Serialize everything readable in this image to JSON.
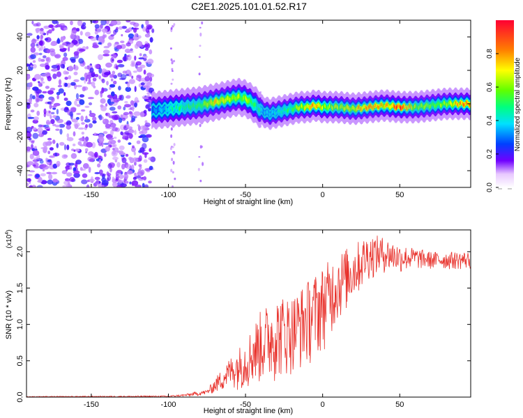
{
  "title": "C2E1.2025.101.01.52.R17",
  "chart_data": [
    {
      "type": "heatmap",
      "xlabel": "Height of straight line (km)",
      "ylabel": "Frequency (Hz)",
      "xlim": [
        -192,
        96
      ],
      "ylim": [
        -50,
        50
      ],
      "xticks": [
        -150,
        -100,
        -50,
        0,
        50
      ],
      "yticks": [
        -40,
        -20,
        0,
        20,
        40
      ],
      "colorbar": {
        "label": "Normalized spectral amplitude",
        "range": [
          0,
          1
        ],
        "ticks": [
          "0.0",
          "0.2",
          "0.4",
          "0.6",
          "0.8"
        ]
      },
      "ridge": {
        "description_x": [
          -110,
          -100,
          -90,
          -80,
          -70,
          -60,
          -55,
          -50,
          -45,
          -40,
          -35,
          -30,
          -25,
          -20,
          -15,
          -10,
          -5,
          0,
          10,
          20,
          30,
          40,
          50,
          60,
          70,
          80,
          90,
          96
        ],
        "freq_y": [
          -4,
          -3,
          -2,
          -1,
          1,
          3,
          4,
          3,
          0,
          -4,
          -6,
          -5,
          -4,
          -3,
          -2,
          -2,
          -1,
          -2,
          -2,
          -3,
          -2,
          -1,
          -2,
          -2,
          -1,
          0,
          0,
          0
        ],
        "peak_amplitude": [
          0.3,
          0.4,
          0.5,
          0.5,
          0.7,
          0.6,
          0.6,
          0.6,
          0.5,
          0.4,
          0.35,
          0.4,
          0.45,
          0.5,
          0.6,
          0.7,
          0.8,
          0.6,
          0.6,
          0.7,
          0.8,
          0.7,
          0.9,
          0.6,
          0.55,
          0.6,
          0.8,
          0.8
        ]
      }
    },
    {
      "type": "line",
      "xlabel": "Height of straight line (km)",
      "ylabel": "SNR (10 * v/v)",
      "yexp": "(x10",
      "yexp_power": "4",
      "yexp_close": ")",
      "xlim": [
        -192,
        96
      ],
      "ylim": [
        0,
        2.3
      ],
      "xticks": [
        -150,
        -100,
        -50,
        0,
        50
      ],
      "yticks": [
        "0.0",
        "0.5",
        "1.0",
        "1.5",
        "2.0"
      ],
      "color": "#e8302a",
      "series": [
        {
          "name": "SNR",
          "x": [
            -192,
            -100,
            -90,
            -80,
            -75,
            -70,
            -60,
            -50,
            -40,
            -30,
            -20,
            -10,
            0,
            10,
            20,
            30,
            40,
            50,
            60,
            70,
            80,
            96
          ],
          "low": [
            0.0,
            0.0,
            0.01,
            0.02,
            0.03,
            0.05,
            0.1,
            0.1,
            0.15,
            0.2,
            0.3,
            0.4,
            0.6,
            1.0,
            1.3,
            1.6,
            1.7,
            1.7,
            1.75,
            1.75,
            1.75,
            1.75
          ],
          "high": [
            0.01,
            0.02,
            0.04,
            0.08,
            0.1,
            0.25,
            0.55,
            0.8,
            1.2,
            1.4,
            1.4,
            1.6,
            1.8,
            2.0,
            2.1,
            2.25,
            2.2,
            2.1,
            2.05,
            2.0,
            2.0,
            2.0
          ]
        }
      ]
    }
  ]
}
